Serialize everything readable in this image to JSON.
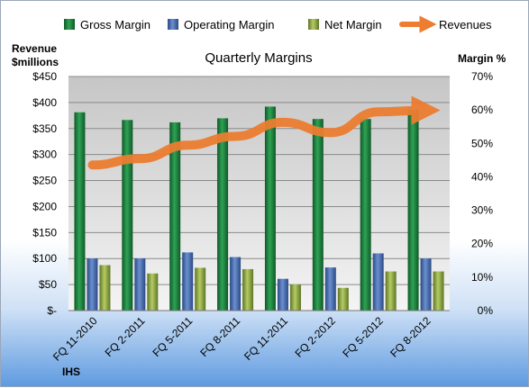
{
  "chart_data": {
    "type": "bar",
    "title": "Quarterly Margins",
    "y_left_label_line1": "Revenue",
    "y_left_label_line2": "$millions",
    "y_right_label": "Margin %",
    "source": "IHS",
    "categories": [
      "FQ 11-2010",
      "FQ 2-2011",
      "FQ 5-2011",
      "FQ 8-2011",
      "FQ 11-2011",
      "FQ 2-2012",
      "FQ 5-2012",
      "FQ 8-2012"
    ],
    "y_left_ticks": [
      "$-",
      "$50",
      "$100",
      "$150",
      "$200",
      "$250",
      "$300",
      "$350",
      "$400",
      "$450"
    ],
    "y_left_lim": [
      0,
      450
    ],
    "y_right_ticks": [
      "0%",
      "10%",
      "20%",
      "30%",
      "40%",
      "50%",
      "60%",
      "70%"
    ],
    "y_right_lim": [
      0,
      70
    ],
    "legend_position": "top",
    "series": [
      {
        "name": "Gross Margin",
        "type": "bar",
        "axis": "right",
        "color": "#1e7a3c",
        "values": [
          59.3,
          57.0,
          56.3,
          57.5,
          61.0,
          57.3,
          57.3,
          60.0
        ]
      },
      {
        "name": "Operating Margin",
        "type": "bar",
        "axis": "right",
        "color": "#3e62a6",
        "values": [
          15.6,
          15.6,
          17.4,
          16.0,
          9.5,
          12.9,
          17.1,
          15.6
        ]
      },
      {
        "name": "Net Margin",
        "type": "bar",
        "axis": "right",
        "color": "#8ea83c",
        "values": [
          13.6,
          11.1,
          12.8,
          12.4,
          7.8,
          6.8,
          11.7,
          11.7
        ]
      },
      {
        "name": "Revenues",
        "type": "line",
        "axis": "left",
        "color": "#ec7d31",
        "values": [
          280,
          292,
          318,
          335,
          362,
          342,
          382,
          385
        ]
      }
    ],
    "grid": true
  }
}
